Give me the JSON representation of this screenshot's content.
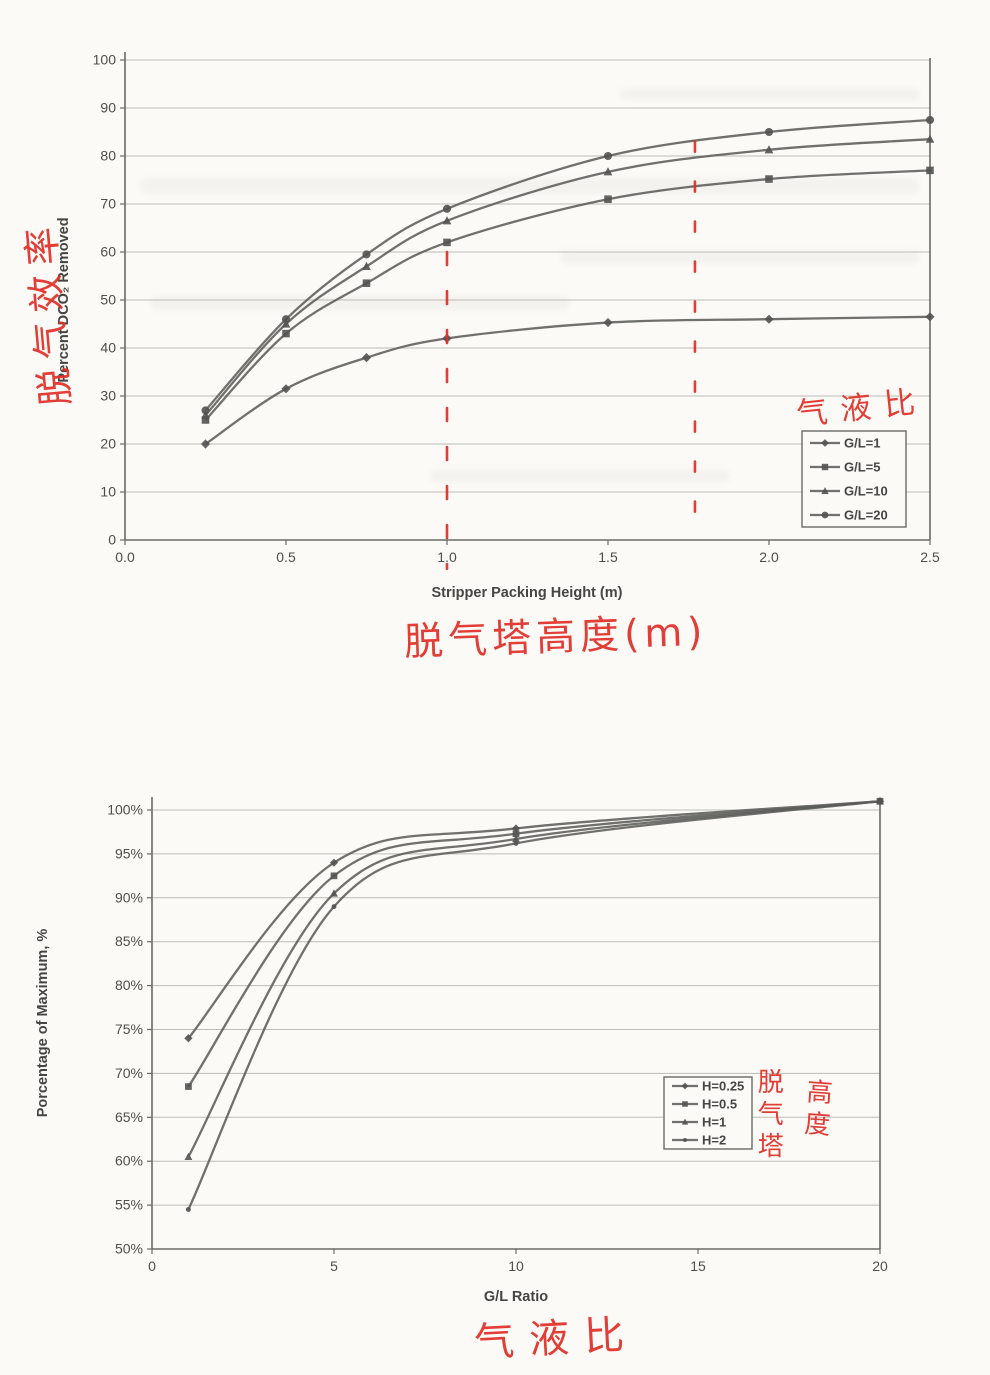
{
  "page": {
    "description": "Scanned report page with two line charts and red handwritten Chinese annotations",
    "background": "#fbfaf7",
    "ink_color": "#5c5c5a",
    "grid_color": "#bdbdb7",
    "annotation_color": "#e02d26"
  },
  "chart_data": [
    {
      "id": "stripper-height-chart",
      "type": "line",
      "title": "",
      "xlabel": "Stripper Packing Height (m)",
      "ylabel": "Percent DCO₂ Removed",
      "xlim": [
        0,
        2.5
      ],
      "ylim": [
        0,
        100
      ],
      "grid": true,
      "legend_position": "inside-right",
      "xticks": {
        "values": [
          0,
          0.5,
          1.0,
          1.5,
          2.0,
          2.5
        ],
        "labels": [
          "0.0",
          "0.5",
          "1.0",
          "1.5",
          "2.0",
          "2.5"
        ]
      },
      "yticks": {
        "values": [
          0,
          10,
          20,
          30,
          40,
          50,
          60,
          70,
          80,
          90,
          100
        ],
        "labels": [
          "0",
          "10",
          "20",
          "30",
          "40",
          "50",
          "60",
          "70",
          "80",
          "90",
          "100"
        ]
      },
      "x": [
        0.25,
        0.5,
        0.75,
        1.0,
        1.5,
        2.0,
        2.5
      ],
      "series": [
        {
          "name": "G/L=1",
          "marker": "diamond",
          "values": [
            20,
            31.5,
            38,
            42,
            45.3,
            46,
            46.5
          ]
        },
        {
          "name": "G/L=5",
          "marker": "square",
          "values": [
            25,
            43,
            53.5,
            62,
            71,
            75.2,
            77
          ]
        },
        {
          "name": "G/L=10",
          "marker": "triangle",
          "values": [
            26,
            45,
            57,
            66.5,
            76.7,
            81.3,
            83.5
          ]
        },
        {
          "name": "G/L=20",
          "marker": "circle",
          "values": [
            27,
            46,
            59.5,
            69,
            80,
            85,
            87.5
          ]
        }
      ],
      "red_dashed_lines": [
        {
          "x": 1.0,
          "y_from": 60,
          "y_to": -6
        },
        {
          "x": 1.77,
          "y_from": 83,
          "y_to": 2
        }
      ],
      "annotations_cn": {
        "ylabel": "脱气效率",
        "legend": "气液比",
        "xlabel": "脱气塔高度(m)"
      }
    },
    {
      "id": "gl-ratio-chart",
      "type": "line",
      "title": "",
      "xlabel": "G/L Ratio",
      "ylabel": "Porcentage of Maximum, %",
      "xlim": [
        0,
        20
      ],
      "ylim": [
        50,
        100
      ],
      "grid": true,
      "legend_position": "inside-right",
      "xticks": {
        "values": [
          0,
          5,
          10,
          15,
          20
        ],
        "labels": [
          "0",
          "5",
          "10",
          "15",
          "20"
        ]
      },
      "yticks": {
        "values": [
          50,
          55,
          60,
          65,
          70,
          75,
          80,
          85,
          90,
          95,
          100
        ],
        "labels": [
          "50%",
          "55%",
          "60%",
          "65%",
          "70%",
          "75%",
          "80%",
          "85%",
          "90%",
          "95%",
          "100%"
        ]
      },
      "x": [
        1,
        5,
        10,
        20
      ],
      "series": [
        {
          "name": "H=0.25",
          "marker": "diamond",
          "values": [
            74,
            94,
            97.9,
            101
          ]
        },
        {
          "name": "H=0.5",
          "marker": "square",
          "values": [
            68.5,
            92.5,
            97.3,
            101
          ]
        },
        {
          "name": "H=1",
          "marker": "triangle",
          "values": [
            60.5,
            90.5,
            96.7,
            101
          ]
        },
        {
          "name": "H=2",
          "marker": "dot",
          "values": [
            54.5,
            89,
            96.2,
            101
          ]
        }
      ],
      "red_dashed_lines": [],
      "annotations_cn": {
        "legend_col1": "脱气塔",
        "legend_col2": "高度",
        "xlabel": "气液比"
      }
    }
  ]
}
